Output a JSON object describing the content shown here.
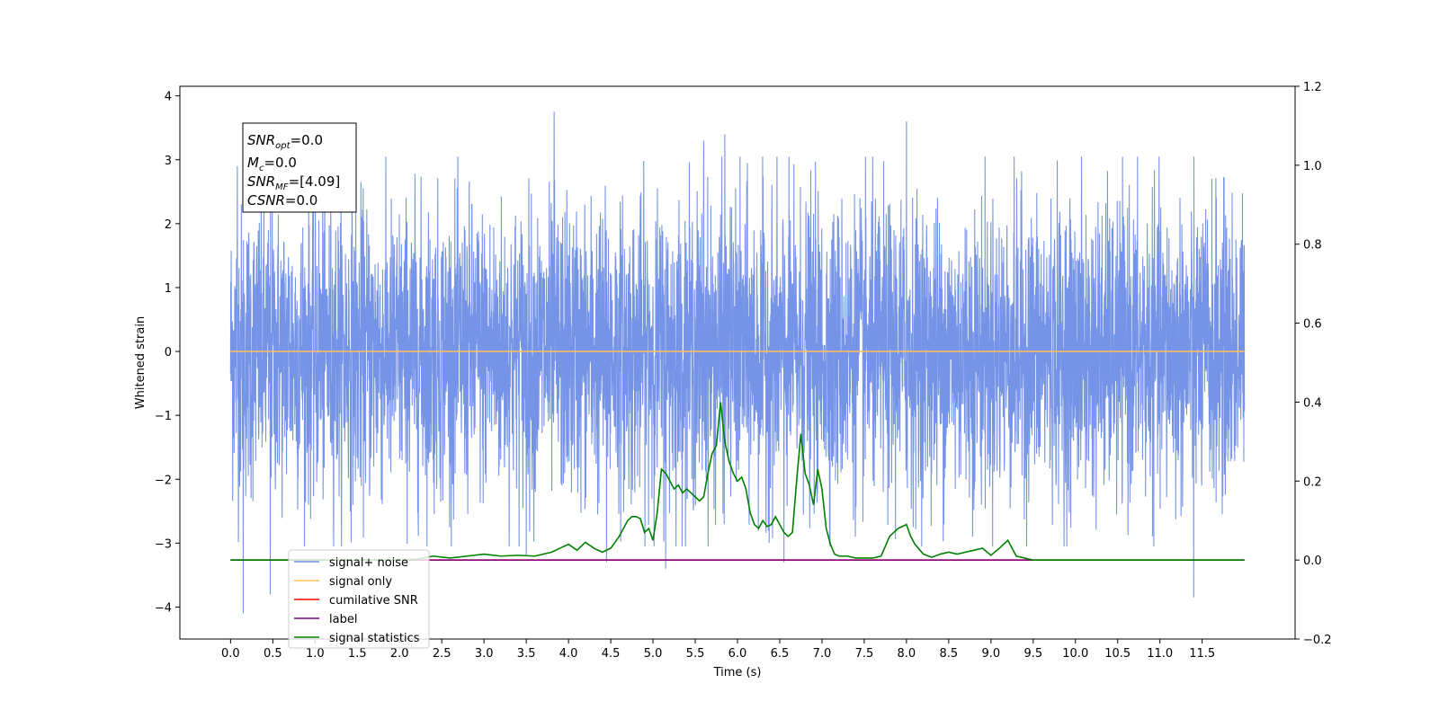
{
  "chart_data": {
    "type": "line",
    "xlabel": "Time (s)",
    "ylabel_left": "Whitened strain",
    "ylabel_right": "",
    "xlim": [
      -0.6,
      12.6
    ],
    "ylim_left": [
      -4.5,
      4.15
    ],
    "ylim_right": [
      -0.2,
      1.2
    ],
    "x_ticks": [
      "0.0",
      "0.5",
      "1.0",
      "1.5",
      "2.0",
      "2.5",
      "3.0",
      "3.5",
      "4.0",
      "4.5",
      "5.0",
      "5.5",
      "6.0",
      "6.5",
      "7.0",
      "7.5",
      "8.0",
      "8.5",
      "9.0",
      "9.5",
      "10.0",
      "10.5",
      "11.0",
      "11.5"
    ],
    "y_ticks_left": [
      "4",
      "3",
      "2",
      "1",
      "0",
      "−1",
      "−2",
      "−3",
      "−4"
    ],
    "y_ticks_right": [
      "1.2",
      "1.0",
      "0.8",
      "0.6",
      "0.4",
      "0.2",
      "0.0",
      "−0.2"
    ],
    "grid": false,
    "legend_position": "lower-left",
    "annotation": {
      "lines": [
        {
          "base": "SNR",
          "sub": "opt",
          "value": "=0.0"
        },
        {
          "base": "M",
          "sub": "c",
          "value": "=0.0"
        },
        {
          "base": "SNR",
          "sub": "MF",
          "value": "=[4.09]"
        },
        {
          "base": "CSNR",
          "sub": "",
          "value": "=0.0"
        }
      ]
    },
    "series": [
      {
        "name": "signal+ noise",
        "axis": "left",
        "color": "#6f8ee6",
        "x_range": [
          0.0,
          12.0
        ],
        "approx_envelope": [
          -2.5,
          2.5
        ],
        "notable_peaks": [
          {
            "x": 0.08,
            "y": 2.9
          },
          {
            "x": 0.15,
            "y": -4.1
          },
          {
            "x": 0.47,
            "y": -3.8
          },
          {
            "x": 3.83,
            "y": 3.75
          },
          {
            "x": 3.5,
            "y": -3.2
          },
          {
            "x": 4.45,
            "y": -3.3
          },
          {
            "x": 5.15,
            "y": -3.4
          },
          {
            "x": 5.6,
            "y": 3.3
          },
          {
            "x": 5.85,
            "y": 3.4
          },
          {
            "x": 6.55,
            "y": -3.3
          },
          {
            "x": 8.0,
            "y": 3.6
          },
          {
            "x": 11.4,
            "y": -3.85
          }
        ]
      },
      {
        "name": "signal only",
        "axis": "left",
        "color": "#ffbf5a",
        "x": [
          0.0,
          12.0
        ],
        "y": [
          0.0,
          0.0
        ]
      },
      {
        "name": "cumilative SNR",
        "axis": "right",
        "color": "#ff0000",
        "x": [
          0.0,
          12.0
        ],
        "y": [
          0.0,
          0.0
        ]
      },
      {
        "name": "label",
        "axis": "right",
        "color": "#800080",
        "x": [
          0.0,
          12.0
        ],
        "y": [
          0.0,
          0.0
        ]
      },
      {
        "name": "signal statistics",
        "axis": "right",
        "color": "#008000",
        "x": [
          0.0,
          0.5,
          1.0,
          1.5,
          2.0,
          2.2,
          2.4,
          2.6,
          2.8,
          3.0,
          3.2,
          3.4,
          3.6,
          3.8,
          3.9,
          4.0,
          4.1,
          4.2,
          4.3,
          4.4,
          4.5,
          4.6,
          4.7,
          4.75,
          4.8,
          4.85,
          4.9,
          4.95,
          5.0,
          5.05,
          5.1,
          5.15,
          5.2,
          5.25,
          5.3,
          5.35,
          5.4,
          5.45,
          5.5,
          5.55,
          5.6,
          5.65,
          5.7,
          5.75,
          5.8,
          5.85,
          5.9,
          5.95,
          6.0,
          6.05,
          6.1,
          6.15,
          6.2,
          6.25,
          6.3,
          6.35,
          6.4,
          6.45,
          6.5,
          6.55,
          6.6,
          6.65,
          6.7,
          6.75,
          6.8,
          6.85,
          6.9,
          6.95,
          7.0,
          7.05,
          7.1,
          7.15,
          7.2,
          7.3,
          7.4,
          7.6,
          7.7,
          7.8,
          7.9,
          8.0,
          8.05,
          8.1,
          8.2,
          8.3,
          8.4,
          8.5,
          8.6,
          8.7,
          8.8,
          8.9,
          9.0,
          9.1,
          9.2,
          9.3,
          9.5,
          10.0,
          11.0,
          12.0
        ],
        "y": [
          0.0,
          0.0,
          0.0,
          0.0,
          0.0,
          0.002,
          0.01,
          0.005,
          0.01,
          0.015,
          0.01,
          0.012,
          0.01,
          0.02,
          0.03,
          0.04,
          0.025,
          0.045,
          0.03,
          0.02,
          0.03,
          0.06,
          0.1,
          0.11,
          0.11,
          0.105,
          0.07,
          0.08,
          0.05,
          0.12,
          0.23,
          0.22,
          0.2,
          0.18,
          0.19,
          0.17,
          0.18,
          0.17,
          0.16,
          0.15,
          0.16,
          0.22,
          0.27,
          0.29,
          0.4,
          0.3,
          0.25,
          0.22,
          0.2,
          0.21,
          0.18,
          0.12,
          0.09,
          0.08,
          0.1,
          0.085,
          0.09,
          0.11,
          0.09,
          0.07,
          0.06,
          0.07,
          0.2,
          0.32,
          0.22,
          0.19,
          0.14,
          0.23,
          0.18,
          0.08,
          0.04,
          0.015,
          0.01,
          0.01,
          0.005,
          0.005,
          0.01,
          0.06,
          0.08,
          0.09,
          0.06,
          0.04,
          0.015,
          0.007,
          0.015,
          0.02,
          0.015,
          0.02,
          0.025,
          0.03,
          0.012,
          0.03,
          0.05,
          0.01,
          0.0,
          0.0,
          0.0,
          0.0
        ]
      }
    ]
  }
}
